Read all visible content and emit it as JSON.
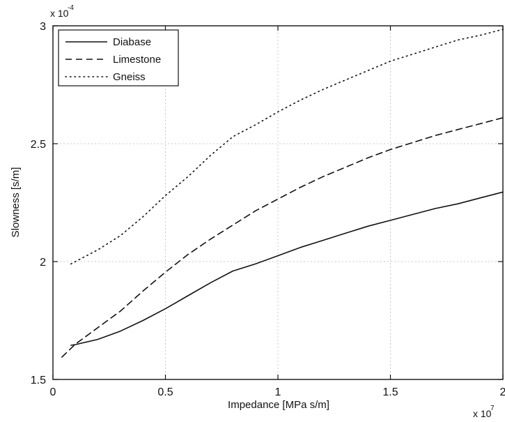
{
  "chart_data": {
    "type": "line",
    "xlabel": "Impedance [MPa s/m]",
    "ylabel": "Slowness [s/m]",
    "x_multiplier_label": "x 10",
    "x_multiplier_exp": "7",
    "y_multiplier_label": "x 10",
    "y_multiplier_exp": "-4",
    "xlim": [
      0,
      2
    ],
    "ylim": [
      1.5,
      3
    ],
    "xticks": [
      0,
      0.5,
      1,
      1.5,
      2
    ],
    "yticks": [
      1.5,
      2,
      2.5,
      3
    ],
    "xtick_labels": [
      "0",
      "0.5",
      "1",
      "1.5",
      "2"
    ],
    "ytick_labels": [
      "1.5",
      "2",
      "2.5",
      "3"
    ],
    "grid": true,
    "legend_position": "top-left",
    "series": [
      {
        "name": "Diabase",
        "style": "solid",
        "x": [
          0.08,
          0.1,
          0.2,
          0.3,
          0.4,
          0.5,
          0.6,
          0.7,
          0.8,
          0.9,
          1.0,
          1.1,
          1.2,
          1.3,
          1.4,
          1.5,
          1.6,
          1.7,
          1.8,
          1.9,
          2.0
        ],
        "values": [
          1.645,
          1.648,
          1.67,
          1.705,
          1.75,
          1.8,
          1.855,
          1.91,
          1.96,
          1.99,
          2.025,
          2.06,
          2.09,
          2.12,
          2.15,
          2.175,
          2.2,
          2.225,
          2.245,
          2.27,
          2.295
        ]
      },
      {
        "name": "Limestone",
        "style": "dashed",
        "x": [
          0.04,
          0.1,
          0.2,
          0.3,
          0.4,
          0.5,
          0.6,
          0.7,
          0.8,
          0.9,
          1.0,
          1.1,
          1.2,
          1.3,
          1.4,
          1.5,
          1.6,
          1.7,
          1.8,
          1.9,
          2.0
        ],
        "values": [
          1.595,
          1.65,
          1.72,
          1.79,
          1.875,
          1.955,
          2.03,
          2.095,
          2.155,
          2.215,
          2.265,
          2.315,
          2.36,
          2.4,
          2.44,
          2.475,
          2.505,
          2.535,
          2.56,
          2.585,
          2.61
        ]
      },
      {
        "name": "Gneiss",
        "style": "dotted",
        "x": [
          0.08,
          0.1,
          0.2,
          0.3,
          0.4,
          0.5,
          0.6,
          0.7,
          0.8,
          0.9,
          1.0,
          1.1,
          1.2,
          1.3,
          1.4,
          1.5,
          1.6,
          1.7,
          1.8,
          1.9,
          2.0
        ],
        "values": [
          1.99,
          2.0,
          2.05,
          2.11,
          2.19,
          2.28,
          2.36,
          2.45,
          2.53,
          2.58,
          2.635,
          2.685,
          2.73,
          2.77,
          2.81,
          2.85,
          2.88,
          2.91,
          2.94,
          2.96,
          2.985
        ]
      }
    ]
  }
}
